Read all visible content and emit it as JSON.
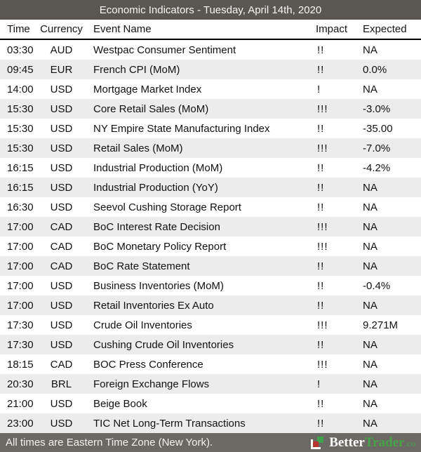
{
  "title_bar": {
    "title": "Economic Indicators - Tuesday, April 14th, 2020"
  },
  "table": {
    "columns": [
      "Time",
      "Currency",
      "Event Name",
      "Impact",
      "Expected"
    ],
    "rows": [
      {
        "time": "03:30",
        "currency": "AUD",
        "event": "Westpac Consumer Sentiment",
        "impact": "!!",
        "expected": "NA"
      },
      {
        "time": "09:45",
        "currency": "EUR",
        "event": "French CPI (MoM)",
        "impact": "!!",
        "expected": "0.0%"
      },
      {
        "time": "14:00",
        "currency": "USD",
        "event": "Mortgage Market Index",
        "impact": "!",
        "expected": "NA"
      },
      {
        "time": "15:30",
        "currency": "USD",
        "event": "Core Retail Sales (MoM)",
        "impact": "!!!",
        "expected": "-3.0%"
      },
      {
        "time": "15:30",
        "currency": "USD",
        "event": "NY Empire State Manufacturing Index",
        "impact": "!!",
        "expected": "-35.00"
      },
      {
        "time": "15:30",
        "currency": "USD",
        "event": "Retail Sales (MoM)",
        "impact": "!!!",
        "expected": "-7.0%"
      },
      {
        "time": "16:15",
        "currency": "USD",
        "event": "Industrial Production (MoM)",
        "impact": "!!",
        "expected": "-4.2%"
      },
      {
        "time": "16:15",
        "currency": "USD",
        "event": "Industrial Production (YoY)",
        "impact": "!!",
        "expected": "NA"
      },
      {
        "time": "16:30",
        "currency": "USD",
        "event": "Seevol Cushing Storage Report",
        "impact": "!!",
        "expected": "NA"
      },
      {
        "time": "17:00",
        "currency": "CAD",
        "event": "BoC Interest Rate Decision",
        "impact": "!!!",
        "expected": "NA"
      },
      {
        "time": "17:00",
        "currency": "CAD",
        "event": "BoC Monetary Policy Report",
        "impact": "!!!",
        "expected": "NA"
      },
      {
        "time": "17:00",
        "currency": "CAD",
        "event": "BoC Rate Statement",
        "impact": "!!",
        "expected": "NA"
      },
      {
        "time": "17:00",
        "currency": "USD",
        "event": "Business Inventories (MoM)",
        "impact": "!!",
        "expected": "-0.4%"
      },
      {
        "time": "17:00",
        "currency": "USD",
        "event": "Retail Inventories Ex Auto",
        "impact": "!!",
        "expected": "NA"
      },
      {
        "time": "17:30",
        "currency": "USD",
        "event": "Crude Oil Inventories",
        "impact": "!!!",
        "expected": "9.271M"
      },
      {
        "time": "17:30",
        "currency": "USD",
        "event": "Cushing Crude Oil Inventories",
        "impact": "!!",
        "expected": "NA"
      },
      {
        "time": "18:15",
        "currency": "CAD",
        "event": "BOC Press Conference",
        "impact": "!!!",
        "expected": "NA"
      },
      {
        "time": "20:30",
        "currency": "BRL",
        "event": "Foreign Exchange Flows",
        "impact": "!",
        "expected": "NA"
      },
      {
        "time": "21:00",
        "currency": "USD",
        "event": "Beige Book",
        "impact": "!!",
        "expected": "NA"
      },
      {
        "time": "23:00",
        "currency": "USD",
        "event": "TIC Net Long-Term Transactions",
        "impact": "!!",
        "expected": "NA"
      }
    ]
  },
  "footer": {
    "note": "All times are Eastern Time Zone (New York).",
    "brand": {
      "name_left": "Better",
      "name_right": "Trader",
      "tld": ".co"
    }
  },
  "colors": {
    "title_bar_bg": "#5a5652",
    "footer_bg": "#6c6965",
    "row_alt_bg": "#ececec",
    "brand_green": "#47a347",
    "logo_green": "#3fa34d",
    "logo_red": "#b5342e"
  }
}
